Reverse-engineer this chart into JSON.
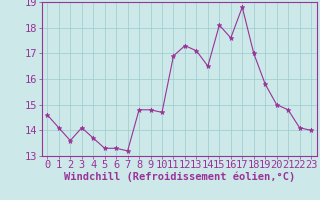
{
  "x": [
    0,
    1,
    2,
    3,
    4,
    5,
    6,
    7,
    8,
    9,
    10,
    11,
    12,
    13,
    14,
    15,
    16,
    17,
    18,
    19,
    20,
    21,
    22,
    23
  ],
  "y": [
    14.6,
    14.1,
    13.6,
    14.1,
    13.7,
    13.3,
    13.3,
    13.2,
    14.8,
    14.8,
    14.7,
    16.9,
    17.3,
    17.1,
    16.5,
    18.1,
    17.6,
    18.8,
    17.0,
    15.8,
    15.0,
    14.8,
    14.1,
    14.0
  ],
  "line_color": "#993399",
  "marker": "*",
  "marker_color": "#993399",
  "bg_color": "#cce8e8",
  "grid_color": "#99cccc",
  "xlabel": "Windchill (Refroidissement éolien,°C)",
  "ylim": [
    13,
    19
  ],
  "xlim_min": -0.5,
  "xlim_max": 23.5,
  "yticks": [
    13,
    14,
    15,
    16,
    17,
    18,
    19
  ],
  "xticks": [
    0,
    1,
    2,
    3,
    4,
    5,
    6,
    7,
    8,
    9,
    10,
    11,
    12,
    13,
    14,
    15,
    16,
    17,
    18,
    19,
    20,
    21,
    22,
    23
  ],
  "xlabel_fontsize": 7.5,
  "tick_fontsize": 7.5,
  "tick_color": "#993399",
  "axis_color": "#993399",
  "line_width": 0.8,
  "marker_size": 3.5
}
